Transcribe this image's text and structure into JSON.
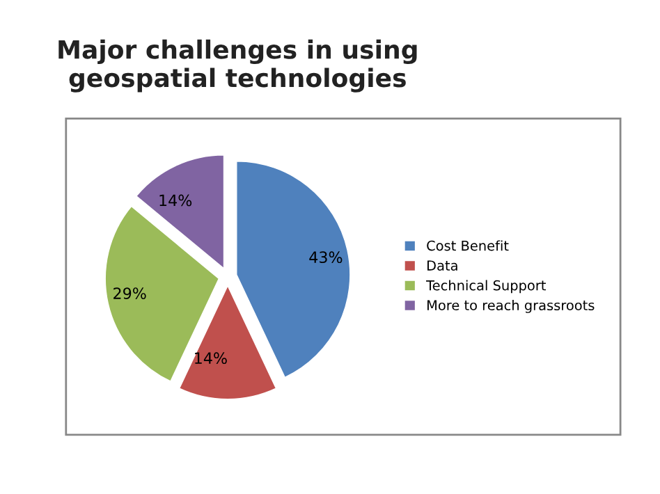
{
  "chart_data": {
    "type": "pie",
    "title": "Major challenges in using\ngeospatial technologies",
    "categories": [
      "Cost Benefit",
      "Data",
      "Technical Support",
      "More to reach grassroots"
    ],
    "values": [
      43,
      14,
      29,
      14
    ],
    "colors": [
      "#4f81bd",
      "#c0504d",
      "#9bbb59",
      "#8064a2"
    ],
    "value_labels": [
      "43%",
      "14%",
      "29%",
      "14%"
    ],
    "legend": "right"
  }
}
